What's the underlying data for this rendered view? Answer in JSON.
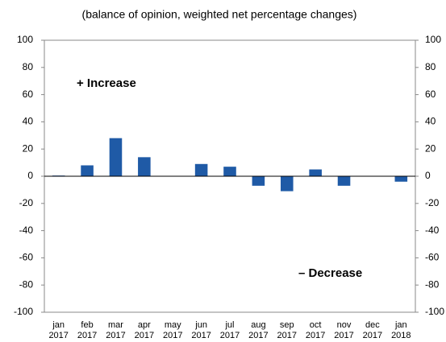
{
  "chart_data": {
    "type": "bar",
    "subtitle": "(balance of opinion, weighted net percentage changes)",
    "annotations": [
      "+ Increase",
      "– Decrease"
    ],
    "categories": [
      "jan 2017",
      "feb 2017",
      "mar 2017",
      "apr 2017",
      "may 2017",
      "jun 2017",
      "jul 2017",
      "aug 2017",
      "sep 2017",
      "oct 2017",
      "nov 2017",
      "dec 2017",
      "jan 2018"
    ],
    "values": [
      0.5,
      8,
      28,
      14,
      0,
      9,
      7,
      -7,
      -11,
      5,
      -7,
      0,
      -4
    ],
    "color": "#1f5aa6",
    "ylim": [
      -100,
      100
    ],
    "yticks": [
      -100,
      -80,
      -60,
      -40,
      -20,
      0,
      20,
      40,
      60,
      80,
      100
    ],
    "y2lim": [
      -100,
      100
    ],
    "y2ticks": [
      -100,
      -80,
      -60,
      -40,
      -20,
      0,
      20,
      40,
      60,
      80,
      100
    ],
    "grid": false
  }
}
